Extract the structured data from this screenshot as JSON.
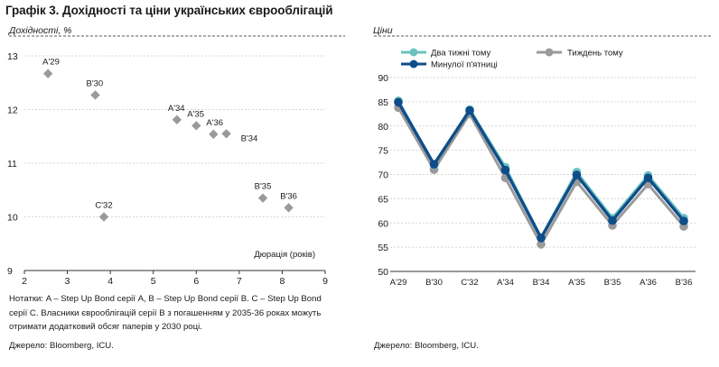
{
  "title": "Графік 3. Дохідності та ціни українських єврооблігацій",
  "notes": "Нотатки: A – Step Up Bond серії A, B – Step Up Bond серії B. C – Step Up Bond серії C. Власники єврооблігацій серії B з погашенням у 2035-36 роках можуть отримати додатковий обсяг паперів у 2030 році.",
  "source_left": "Джерело: Bloomberg, ICU.",
  "source_right": "Джерело: Bloomberg, ICU.",
  "chart_data": [
    {
      "type": "scatter",
      "ylabel": "Дохідності, %",
      "xlabel": "Дюрація (років)",
      "xlim": [
        2,
        9
      ],
      "ylim": [
        9,
        13
      ],
      "x_ticks": [
        2,
        3,
        4,
        5,
        6,
        7,
        8,
        9
      ],
      "y_ticks": [
        9,
        10,
        11,
        12,
        13
      ],
      "color": "#9a9a9a",
      "grid": "horizontal dashed",
      "points": [
        {
          "label": "A'29",
          "x": 2.55,
          "y": 12.67
        },
        {
          "label": "B'30",
          "x": 3.65,
          "y": 12.27
        },
        {
          "label": "A'34",
          "x": 5.55,
          "y": 11.81
        },
        {
          "label": "A'35",
          "x": 6.0,
          "y": 11.7
        },
        {
          "label": "A'36",
          "x": 6.4,
          "y": 11.54
        },
        {
          "label": "B'34",
          "x": 6.7,
          "y": 11.55
        },
        {
          "label": "C'32",
          "x": 3.85,
          "y": 10.0
        },
        {
          "label": "B'35",
          "x": 7.55,
          "y": 10.35
        },
        {
          "label": "B'36",
          "x": 8.15,
          "y": 10.17
        }
      ]
    },
    {
      "type": "line",
      "ylabel": "Ціни",
      "categories": [
        "A'29",
        "B'30",
        "C'32",
        "A'34",
        "B'34",
        "A'35",
        "B'35",
        "A'36",
        "B'36"
      ],
      "ylim": [
        50,
        90
      ],
      "y_ticks": [
        50,
        55,
        60,
        65,
        70,
        75,
        80,
        85,
        90
      ],
      "grid": "horizontal dashed",
      "legend_position": "top",
      "series": [
        {
          "name": "Два тижні тому",
          "color": "#6cc2bd",
          "values": [
            85.2,
            72.0,
            83.4,
            71.5,
            57.0,
            70.5,
            61.0,
            69.8,
            61.0
          ]
        },
        {
          "name": "Тиждень тому",
          "color": "#9a9a9a",
          "values": [
            83.8,
            71.0,
            82.5,
            69.3,
            55.6,
            68.5,
            59.5,
            68.0,
            59.3
          ]
        },
        {
          "name": "Минулої п'ятниці",
          "color": "#0f4d8a",
          "values": [
            84.9,
            72.1,
            83.2,
            70.9,
            56.9,
            69.9,
            60.5,
            69.3,
            60.4
          ]
        }
      ]
    }
  ]
}
